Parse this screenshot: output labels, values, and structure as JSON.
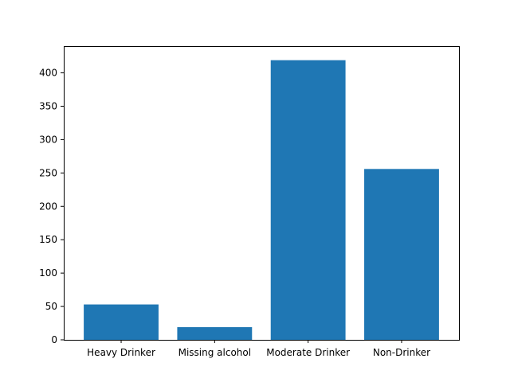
{
  "chart_data": {
    "type": "bar",
    "categories": [
      "Heavy Drinker",
      "Missing alcohol",
      "Moderate Drinker",
      "Non-Drinker"
    ],
    "values": [
      53,
      19,
      419,
      256
    ],
    "title": "",
    "xlabel": "",
    "ylabel": "",
    "ylim": [
      0,
      440
    ],
    "yticks": [
      0,
      50,
      100,
      150,
      200,
      250,
      300,
      350,
      400
    ],
    "grid": false,
    "bar_color": "#1f77b4"
  }
}
